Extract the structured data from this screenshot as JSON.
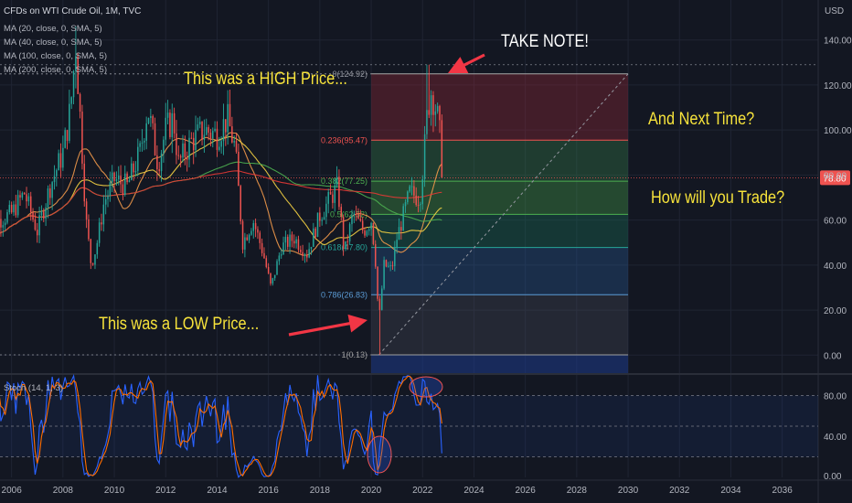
{
  "header": {
    "symbol_line": "CFDs on WTI Crude Oil, 1M, TVC",
    "indicators": [
      "MA (20, close, 0, SMA, 5)",
      "MA (40, close, 0, SMA, 5)",
      "MA (100, close, 0, SMA, 5)",
      "MA (200, close, 0, SMA, 5)"
    ],
    "currency": "USD"
  },
  "annotations": {
    "take_note": "TAKE NOTE!",
    "high_price": "This was a HIGH Price...",
    "low_price": "This was a LOW Price...",
    "next_time": "And Next Time?",
    "how_trade": "How will you Trade?"
  },
  "last_price": "78.80",
  "stoch_label": "Stoch (14, 1, 3)",
  "colors": {
    "background": "#131722",
    "up": "#26a69a",
    "down": "#ef5350",
    "ma20": "#f2994a",
    "ma40": "#f5d142",
    "ma100": "#4caf50",
    "ma200": "#e53935",
    "annotation": "#f7e33b",
    "arrow": "#f23645",
    "stoch_k": "#2962ff",
    "stoch_d": "#ff6d00"
  },
  "chart_data": {
    "type": "candlestick",
    "x_ticks": [
      "2006",
      "2008",
      "2010",
      "2012",
      "2014",
      "2016",
      "2018",
      "2020",
      "2022",
      "2024",
      "2026",
      "2028",
      "2030",
      "2032",
      "2034",
      "2036"
    ],
    "y_ticks": [
      "0.00",
      "20.00",
      "40.00",
      "60.00",
      "80.00",
      "100.00",
      "120.00",
      "140.00"
    ],
    "y_range": [
      -8,
      148
    ],
    "stoch_ticks": [
      "0.00",
      "40.00",
      "80.00"
    ],
    "stoch_range": [
      0,
      100
    ],
    "price_keypoints": [
      [
        2005.0,
        50
      ],
      [
        2005.5,
        60
      ],
      [
        2006.0,
        63
      ],
      [
        2006.5,
        72
      ],
      [
        2007.0,
        55
      ],
      [
        2007.5,
        75
      ],
      [
        2008.0,
        90
      ],
      [
        2008.3,
        110
      ],
      [
        2008.5,
        138
      ],
      [
        2008.7,
        100
      ],
      [
        2008.9,
        60
      ],
      [
        2009.1,
        40
      ],
      [
        2009.3,
        48
      ],
      [
        2009.6,
        68
      ],
      [
        2010.0,
        78
      ],
      [
        2010.5,
        75
      ],
      [
        2011.0,
        90
      ],
      [
        2011.3,
        110
      ],
      [
        2011.7,
        85
      ],
      [
        2012.0,
        100
      ],
      [
        2012.3,
        105
      ],
      [
        2012.5,
        85
      ],
      [
        2013.0,
        95
      ],
      [
        2013.5,
        100
      ],
      [
        2014.0,
        98
      ],
      [
        2014.4,
        105
      ],
      [
        2014.7,
        92
      ],
      [
        2015.0,
        50
      ],
      [
        2015.4,
        60
      ],
      [
        2015.8,
        45
      ],
      [
        2016.1,
        30
      ],
      [
        2016.5,
        48
      ],
      [
        2017.0,
        52
      ],
      [
        2017.5,
        45
      ],
      [
        2018.0,
        62
      ],
      [
        2018.7,
        75
      ],
      [
        2018.95,
        45
      ],
      [
        2019.3,
        63
      ],
      [
        2019.7,
        55
      ],
      [
        2020.0,
        60
      ],
      [
        2020.15,
        45
      ],
      [
        2020.3,
        15
      ],
      [
        2020.5,
        40
      ],
      [
        2020.8,
        38
      ],
      [
        2021.0,
        52
      ],
      [
        2021.5,
        72
      ],
      [
        2021.9,
        70
      ],
      [
        2022.1,
        95
      ],
      [
        2022.2,
        110
      ],
      [
        2022.35,
        118
      ],
      [
        2022.55,
        108
      ],
      [
        2022.7,
        95
      ],
      [
        2022.8,
        78.8
      ]
    ],
    "fibonacci": {
      "levels": [
        {
          "ratio": "0",
          "value": 124.92,
          "label": "0(124.92)"
        },
        {
          "ratio": "0.236",
          "value": 95.47,
          "label": "0.236(95.47)"
        },
        {
          "ratio": "0.382",
          "value": 77.25,
          "label": "0.382(77.25)"
        },
        {
          "ratio": "0.5",
          "value": 62.52,
          "label": "0.5(62.52)"
        },
        {
          "ratio": "0.618",
          "value": 47.8,
          "label": "0.618(47.80)"
        },
        {
          "ratio": "0.786",
          "value": 26.83,
          "label": "0.786(26.83)"
        },
        {
          "ratio": "1",
          "value": 0.13,
          "label": "1(0.13)"
        }
      ],
      "x_start": 2020.0,
      "x_end": 2030.0
    },
    "x_range": [
      2005.55,
      2037.4
    ]
  }
}
